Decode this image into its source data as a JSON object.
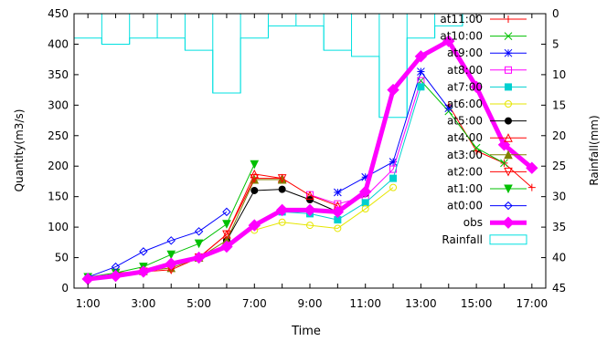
{
  "chart_data": {
    "type": "line",
    "xlabel": "Time",
    "ylabel": "Quantity(m3/s)",
    "y2label": "Rainfall(mm)",
    "x_ticks": [
      "1:00",
      "3:00",
      "5:00",
      "7:00",
      "9:00",
      "11:00",
      "13:00",
      "15:00",
      "17:00"
    ],
    "ylim": [
      0,
      450
    ],
    "y_ticks": [
      0,
      50,
      100,
      150,
      200,
      250,
      300,
      350,
      400,
      450
    ],
    "y2lim": [
      0,
      45
    ],
    "y2_inverted": true,
    "y2_ticks": [
      0,
      5,
      10,
      15,
      20,
      25,
      30,
      35,
      40,
      45
    ],
    "xlim": [
      0.5,
      17.5
    ],
    "legend_position": "right",
    "series": [
      {
        "name": "at11:00",
        "color": "#ff0000",
        "marker": "plus",
        "x": [
          14,
          15,
          16,
          17
        ],
        "y": [
          300,
          225,
          205,
          165
        ]
      },
      {
        "name": "at10:00",
        "color": "#00c000",
        "marker": "cross",
        "x": [
          13,
          14,
          15,
          16
        ],
        "y": [
          340,
          290,
          230,
          205
        ]
      },
      {
        "name": "at9:00",
        "color": "#0000ff",
        "marker": "star",
        "x": [
          10,
          11,
          12,
          13,
          14
        ],
        "y": [
          157,
          182,
          207,
          355,
          295
        ]
      },
      {
        "name": "at8:00",
        "color": "#ff00ff",
        "marker": "square",
        "x": [
          9,
          10,
          11,
          12,
          13
        ],
        "y": [
          153,
          138,
          150,
          195,
          340
        ]
      },
      {
        "name": "at7:00",
        "color": "#00d0d0",
        "marker": "filled-square",
        "x": [
          8,
          9,
          10,
          11,
          12,
          13
        ],
        "y": [
          125,
          122,
          112,
          140,
          180,
          330
        ]
      },
      {
        "name": "at6:00",
        "color": "#e6e600",
        "marker": "circle",
        "x": [
          7,
          8,
          9,
          10,
          11,
          12
        ],
        "y": [
          95,
          108,
          103,
          98,
          130,
          165
        ]
      },
      {
        "name": "at5:00",
        "color": "#000000",
        "marker": "filled-circle",
        "x": [
          6,
          7,
          8,
          9,
          10,
          11
        ],
        "y": [
          78,
          160,
          162,
          145,
          125,
          155
        ]
      },
      {
        "name": "at4:00",
        "color": "#ff0000",
        "marker": "triangle",
        "x": [
          5,
          6,
          7,
          8,
          9,
          10
        ],
        "y": [
          50,
          88,
          187,
          180,
          152,
          135
        ]
      },
      {
        "name": "at3:00",
        "color": "#808000",
        "marker": "filled-triangle",
        "x": [
          3,
          4,
          5,
          6,
          7,
          8
        ],
        "y": [
          28,
          33,
          50,
          78,
          178,
          178
        ]
      },
      {
        "name": "at2:00",
        "color": "#ff0000",
        "marker": "down-triangle",
        "x": [
          2,
          3,
          4,
          5,
          6,
          7,
          8
        ],
        "y": [
          25,
          27,
          30,
          50,
          88,
          180,
          180
        ]
      },
      {
        "name": "at1:00",
        "color": "#00c000",
        "marker": "filled-down-triangle",
        "x": [
          1,
          2,
          3,
          4,
          5,
          6,
          7
        ],
        "y": [
          18,
          25,
          35,
          55,
          73,
          105,
          203
        ]
      },
      {
        "name": "at0:00",
        "color": "#0000ff",
        "marker": "diamond",
        "x": [
          1,
          2,
          3,
          4,
          5,
          6
        ],
        "y": [
          18,
          35,
          60,
          78,
          93,
          125
        ]
      },
      {
        "name": "obs",
        "color": "#ff00ff",
        "marker": "filled-diamond",
        "thick": true,
        "x": [
          1,
          2,
          3,
          4,
          5,
          6,
          7,
          8,
          9,
          10,
          11,
          12,
          13,
          14,
          15,
          16,
          17
        ],
        "y": [
          15,
          20,
          27,
          40,
          50,
          68,
          103,
          128,
          128,
          125,
          158,
          325,
          380,
          405,
          330,
          235,
          197
        ]
      }
    ],
    "rainfall": {
      "name": "Rainfall",
      "color": "#00e0e0",
      "values": [
        4,
        5,
        4,
        4,
        6,
        13,
        4,
        2,
        2,
        6,
        7,
        17,
        4,
        2,
        0,
        0,
        0
      ]
    }
  }
}
